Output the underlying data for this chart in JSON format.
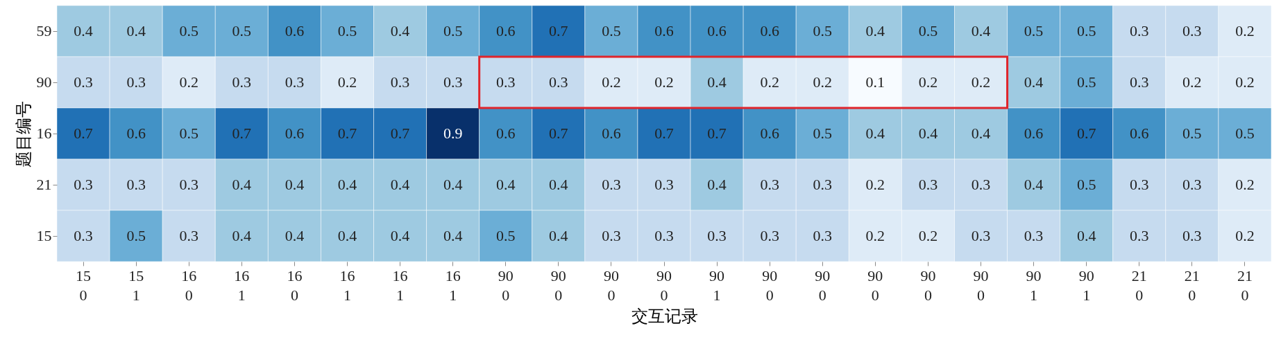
{
  "chart_data": {
    "type": "heatmap",
    "xlabel": "交互记录",
    "ylabel": "题目编号",
    "categories": [
      "15\n0",
      "15\n1",
      "16\n0",
      "16\n1",
      "16\n0",
      "16\n1",
      "16\n1",
      "16\n1",
      "90\n0",
      "90\n0",
      "90\n0",
      "90\n0",
      "90\n1",
      "90\n0",
      "90\n0",
      "90\n0",
      "90\n0",
      "90\n0",
      "90\n1",
      "90\n1",
      "21\n0",
      "21\n0",
      "21\n0"
    ],
    "y_categories": [
      "59",
      "90",
      "16",
      "21",
      "15"
    ],
    "cells": [
      [
        0.4,
        0.4,
        0.5,
        0.5,
        0.6,
        0.5,
        0.4,
        0.5,
        0.6,
        0.7,
        0.5,
        0.6,
        0.6,
        0.6,
        0.5,
        0.4,
        0.5,
        0.4,
        0.5,
        0.5,
        0.3,
        0.3,
        0.2
      ],
      [
        0.3,
        0.3,
        0.2,
        0.3,
        0.3,
        0.2,
        0.3,
        0.3,
        0.3,
        0.3,
        0.2,
        0.2,
        0.4,
        0.2,
        0.2,
        0.1,
        0.2,
        0.2,
        0.4,
        0.5,
        0.3,
        0.2,
        0.2
      ],
      [
        0.7,
        0.6,
        0.5,
        0.7,
        0.6,
        0.7,
        0.7,
        0.9,
        0.6,
        0.7,
        0.6,
        0.7,
        0.7,
        0.6,
        0.5,
        0.4,
        0.4,
        0.4,
        0.6,
        0.7,
        0.6,
        0.5,
        0.5
      ],
      [
        0.3,
        0.3,
        0.3,
        0.4,
        0.4,
        0.4,
        0.4,
        0.4,
        0.4,
        0.4,
        0.3,
        0.3,
        0.4,
        0.3,
        0.3,
        0.2,
        0.3,
        0.3,
        0.4,
        0.5,
        0.3,
        0.3,
        0.2
      ],
      [
        0.3,
        0.5,
        0.3,
        0.4,
        0.4,
        0.4,
        0.4,
        0.4,
        0.5,
        0.4,
        0.3,
        0.3,
        0.3,
        0.3,
        0.3,
        0.2,
        0.2,
        0.3,
        0.3,
        0.4,
        0.3,
        0.3,
        0.2
      ]
    ],
    "data_labels": true
  }
}
